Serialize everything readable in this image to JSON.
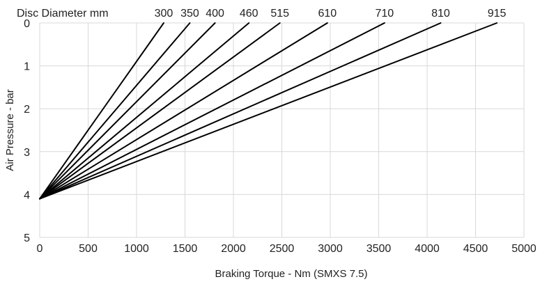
{
  "chart_data": {
    "type": "line",
    "title": "",
    "xlabel": "Braking Torque - Nm (SMXS 7.5)",
    "ylabel": "Air Pressure - bar",
    "legend_title": "Disc Diameter mm",
    "xlim": [
      0,
      5000
    ],
    "ylim": [
      0,
      5
    ],
    "y_inverted": true,
    "grid": true,
    "x_ticks": [
      "0",
      "500",
      "1000",
      "1500",
      "2000",
      "2500",
      "3000",
      "3500",
      "4000",
      "4500",
      "5000"
    ],
    "y_ticks": [
      "0",
      "1",
      "2",
      "3",
      "4",
      "5"
    ],
    "series": [
      {
        "name": "300",
        "points": [
          [
            0,
            4.1
          ],
          [
            1280,
            0
          ]
        ]
      },
      {
        "name": "350",
        "points": [
          [
            0,
            4.1
          ],
          [
            1550,
            0
          ]
        ]
      },
      {
        "name": "400",
        "points": [
          [
            0,
            4.1
          ],
          [
            1810,
            0
          ]
        ]
      },
      {
        "name": "460",
        "points": [
          [
            0,
            4.1
          ],
          [
            2160,
            0
          ]
        ]
      },
      {
        "name": "515",
        "points": [
          [
            0,
            4.1
          ],
          [
            2480,
            0
          ]
        ]
      },
      {
        "name": "610",
        "points": [
          [
            0,
            4.1
          ],
          [
            2970,
            0
          ]
        ]
      },
      {
        "name": "710",
        "points": [
          [
            0,
            4.1
          ],
          [
            3560,
            0
          ]
        ]
      },
      {
        "name": "810",
        "points": [
          [
            0,
            4.1
          ],
          [
            4140,
            0
          ]
        ]
      },
      {
        "name": "915",
        "points": [
          [
            0,
            4.1
          ],
          [
            4720,
            0
          ]
        ]
      }
    ]
  }
}
